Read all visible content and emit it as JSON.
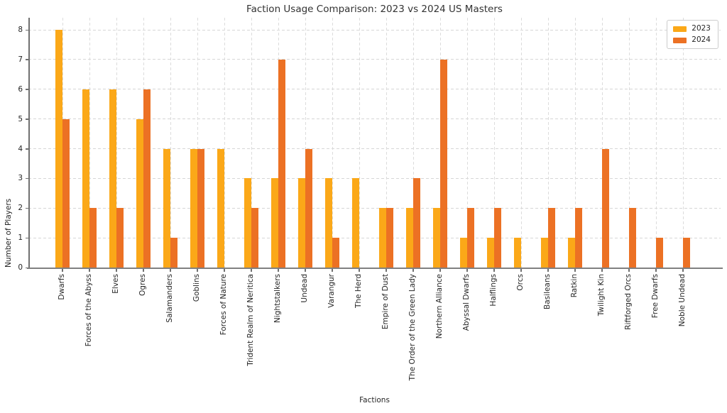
{
  "chart_data": {
    "type": "bar",
    "title": "Faction Usage Comparison: 2023 vs 2024 US Masters",
    "xlabel": "Factions",
    "ylabel": "Number of Players",
    "ylim": [
      0,
      8
    ],
    "yticks": [
      0,
      1,
      2,
      3,
      4,
      5,
      6,
      7,
      8
    ],
    "grid": true,
    "grid_style": "dashed",
    "legend_position": "upper right",
    "categories": [
      "Dwarfs",
      "Forces of the Abyss",
      "Elves",
      "Ogres",
      "Salamanders",
      "Goblins",
      "Forces of Nature",
      "Trident Realm of Neritica",
      "Nightstalkers",
      "Undead",
      "Varangur",
      "The Herd",
      "Empire of Dust",
      "The Order of the Green Lady",
      "Northern Alliance",
      "Abyssal Dwarfs",
      "Halflings",
      "Orcs",
      "Basileans",
      "Ratkin",
      "Twilight Kin",
      "Riftforged Orcs",
      "Free Dwarfs",
      "Noble Undead"
    ],
    "series": [
      {
        "name": "2023",
        "color": "#FBA818",
        "values": [
          8,
          6,
          6,
          5,
          4,
          4,
          4,
          3,
          3,
          3,
          3,
          3,
          2,
          2,
          2,
          1,
          1,
          1,
          1,
          1,
          0,
          0,
          0,
          0
        ]
      },
      {
        "name": "2024",
        "color": "#EC7124",
        "values": [
          5,
          2,
          2,
          6,
          1,
          4,
          0,
          2,
          7,
          4,
          1,
          0,
          2,
          3,
          7,
          2,
          2,
          0,
          2,
          2,
          4,
          2,
          1,
          1
        ]
      }
    ]
  }
}
